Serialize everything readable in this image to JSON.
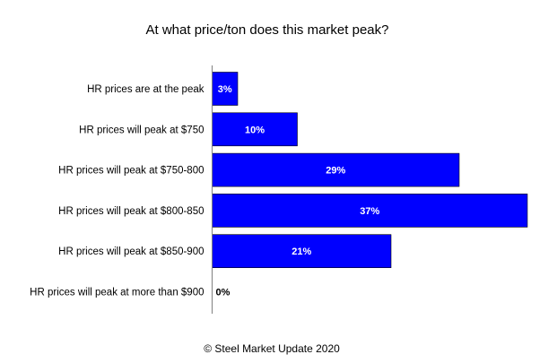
{
  "chart_data": {
    "type": "bar",
    "orientation": "horizontal",
    "title": "At what price/ton does this market peak?",
    "categories": [
      "HR prices are at the peak",
      "HR prices will peak at $750",
      "HR prices will peak at $750-800",
      "HR prices will peak at $800-850",
      "HR prices will peak at $850-900",
      "HR prices will peak at more than $900"
    ],
    "values": [
      3,
      10,
      29,
      37,
      21,
      0
    ],
    "value_labels": [
      "3%",
      "10%",
      "29%",
      "37%",
      "21%",
      "0%"
    ],
    "unit": "%",
    "xlim": [
      0,
      37
    ],
    "xlabel": "",
    "ylabel": "",
    "grid": false,
    "legend": "none",
    "bar_color": "#0000ff",
    "bar_border_color": "#000000",
    "label_color_inside": "#ffffff",
    "label_color_outside": "#000000"
  },
  "footer": "© Steel Market Update 2020"
}
